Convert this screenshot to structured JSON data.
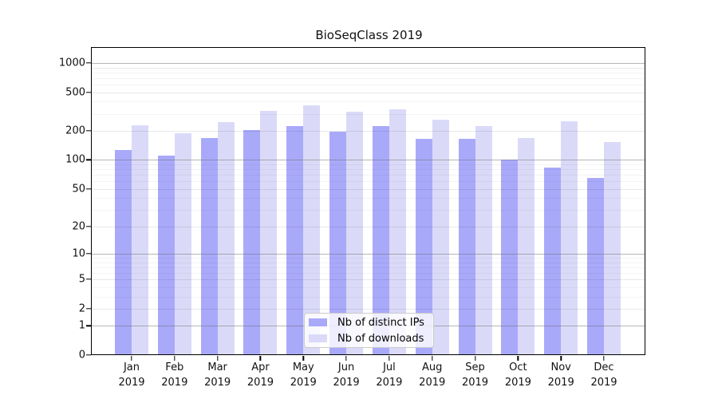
{
  "chart_data": {
    "type": "bar",
    "title": "BioSeqClass 2019",
    "year_label": "2019",
    "categories": [
      "Jan",
      "Feb",
      "Mar",
      "Apr",
      "May",
      "Jun",
      "Jul",
      "Aug",
      "Sep",
      "Oct",
      "Nov",
      "Dec"
    ],
    "series": [
      {
        "name": "Nb of distinct IPs",
        "color": "#a9a9fa",
        "values": [
          127,
          111,
          168,
          203,
          222,
          196,
          223,
          164,
          164,
          100,
          84,
          65
        ]
      },
      {
        "name": "Nb of downloads",
        "color": "#dadaf8",
        "values": [
          227,
          190,
          248,
          319,
          365,
          315,
          335,
          261,
          223,
          170,
          250,
          152
        ]
      }
    ],
    "xlabel": "",
    "ylabel": "",
    "yscale": "log1p",
    "ylim": [
      0,
      1430
    ],
    "yticks": [
      0,
      1,
      2,
      5,
      10,
      20,
      50,
      100,
      200,
      500,
      1000
    ],
    "grid": true,
    "legend_position": "bottom-center",
    "colors": {
      "background": "#ffffff",
      "spine": "#000000",
      "major_grid": "#b0b0b0",
      "minor_grid": "#ececec",
      "legend_border": "#cccccc"
    }
  }
}
